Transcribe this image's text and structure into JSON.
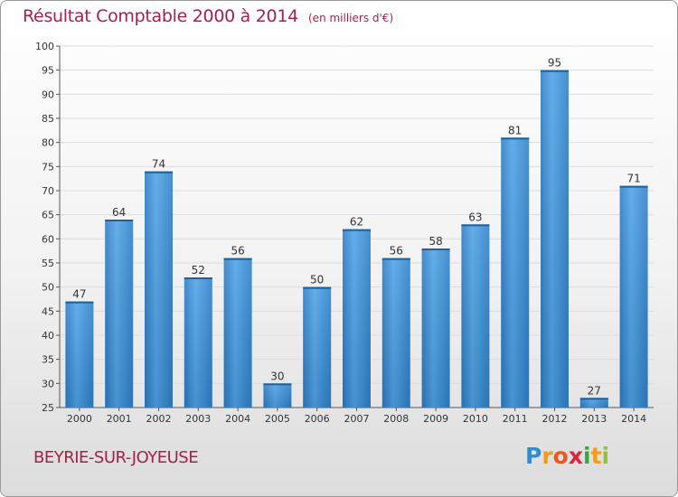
{
  "chart_data": {
    "type": "bar",
    "title": "Résultat Comptable 2000 à 2014",
    "subtitle": "(en milliers d'€)",
    "categories": [
      "2000",
      "2001",
      "2002",
      "2003",
      "2004",
      "2005",
      "2006",
      "2007",
      "2008",
      "2009",
      "2010",
      "2011",
      "2012",
      "2013",
      "2014"
    ],
    "values": [
      47,
      64,
      74,
      52,
      56,
      30,
      50,
      62,
      56,
      58,
      63,
      81,
      95,
      27,
      71
    ],
    "ylim": [
      25,
      100
    ],
    "yticks": [
      25,
      30,
      35,
      40,
      45,
      50,
      55,
      60,
      65,
      70,
      75,
      80,
      85,
      90,
      95,
      100
    ],
    "xlabel": "",
    "ylabel": "",
    "grid": true,
    "bar_color": "#3d8fd6"
  },
  "footer": {
    "commune": "BEYRIE-SUR-JOYEUSE"
  },
  "brand": {
    "letters": [
      {
        "ch": "P",
        "color": "#2a8fd8"
      },
      {
        "ch": "r",
        "color": "#f29b1c"
      },
      {
        "ch": "o",
        "color": "#e9561e"
      },
      {
        "ch": "x",
        "color": "#d8283c"
      },
      {
        "ch": "i",
        "color": "#35a745"
      },
      {
        "ch": "t",
        "color": "#f29b1c"
      },
      {
        "ch": "i",
        "color": "#8fc43a"
      }
    ]
  }
}
